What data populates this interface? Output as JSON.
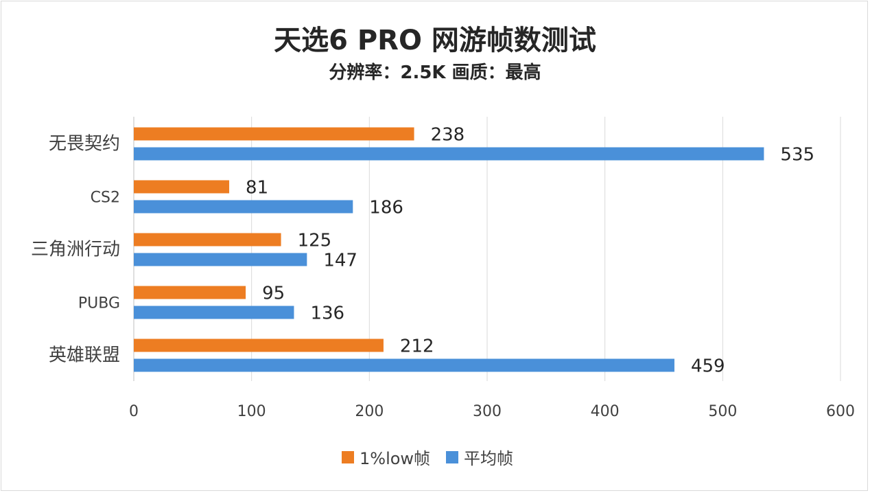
{
  "chart_data": {
    "type": "bar",
    "orientation": "horizontal",
    "title": "天选6 PRO 网游帧数测试",
    "subtitle": "分辨率：2.5K  画质：最高",
    "categories": [
      "无畏契约",
      "CS2",
      "三角洲行动",
      "PUBG",
      "英雄联盟"
    ],
    "series": [
      {
        "name": "1%low帧",
        "color": "#ED7D22",
        "values": [
          238,
          81,
          125,
          95,
          212
        ]
      },
      {
        "name": "平均帧",
        "color": "#4A90D9",
        "values": [
          535,
          186,
          147,
          136,
          459
        ]
      }
    ],
    "xlim": [
      0,
      600
    ],
    "xticks": [
      0,
      100,
      200,
      300,
      400,
      500,
      600
    ],
    "grid": true,
    "legend": "bottom",
    "xlabel": "",
    "ylabel": ""
  }
}
